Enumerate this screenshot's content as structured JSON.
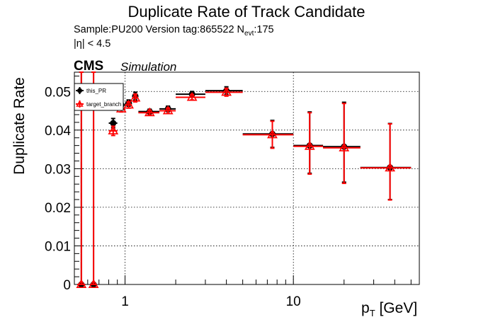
{
  "header": {
    "title": "Duplicate Rate of Track Candidate",
    "sample_text": "Sample:PU200   Version tag:865522  N",
    "nevt_sub": "evt",
    "nevt_value": ":175",
    "eta_text": "|η| < 4.5",
    "cms": "CMS",
    "simulation": "Simulation"
  },
  "colors": {
    "this_pr": "#000000",
    "target_branch": "#ff0000",
    "grid": "#000000",
    "legend_border": "#000000"
  },
  "chart_data": {
    "type": "scatter",
    "xlabel_main": "p",
    "xlabel_sub": "T",
    "xlabel_unit": " [GeV]",
    "ylabel": "Duplicate Rate",
    "xscale": "log",
    "xlim": [
      0.5,
      56
    ],
    "ylim": [
      0,
      0.055
    ],
    "x_ticks": [
      1,
      10
    ],
    "x_tick_labels": [
      "1",
      "10"
    ],
    "y_ticks": [
      0,
      0.01,
      0.02,
      0.03,
      0.04,
      0.05
    ],
    "y_tick_labels": [
      "0",
      "0.01",
      "0.02",
      "0.03",
      "0.04",
      "0.05"
    ],
    "grid": true,
    "legend_position": "top-left",
    "series": [
      {
        "name": "this_PR",
        "marker": "filled-circle",
        "color_key": "this_pr",
        "points": [
          {
            "x": 0.55,
            "xlo": 0.52,
            "xhi": 0.58,
            "y": 0.0,
            "ylo": 0.0,
            "yhi": 0.055
          },
          {
            "x": 0.65,
            "xlo": 0.62,
            "xhi": 0.68,
            "y": 0.0,
            "ylo": 0.0,
            "yhi": 0.055
          },
          {
            "x": 0.85,
            "xlo": 0.8,
            "xhi": 0.9,
            "y": 0.0418,
            "ylo": 0.0406,
            "yhi": 0.043
          },
          {
            "x": 0.95,
            "xlo": 0.9,
            "xhi": 1.0,
            "y": 0.0465,
            "ylo": 0.0457,
            "yhi": 0.0473
          },
          {
            "x": 1.05,
            "xlo": 1.0,
            "xhi": 1.1,
            "y": 0.047,
            "ylo": 0.0462,
            "yhi": 0.0478
          },
          {
            "x": 1.15,
            "xlo": 1.1,
            "xhi": 1.2,
            "y": 0.0488,
            "ylo": 0.0478,
            "yhi": 0.0498
          },
          {
            "x": 1.4,
            "xlo": 1.2,
            "xhi": 1.6,
            "y": 0.0448,
            "ylo": 0.0442,
            "yhi": 0.0454
          },
          {
            "x": 1.8,
            "xlo": 1.6,
            "xhi": 2.0,
            "y": 0.0455,
            "ylo": 0.0448,
            "yhi": 0.0462
          },
          {
            "x": 2.5,
            "xlo": 2.0,
            "xhi": 3.0,
            "y": 0.0493,
            "ylo": 0.0486,
            "yhi": 0.05
          },
          {
            "x": 4.0,
            "xlo": 3.0,
            "xhi": 5.0,
            "y": 0.0502,
            "ylo": 0.0492,
            "yhi": 0.0512
          },
          {
            "x": 7.5,
            "xlo": 5.0,
            "xhi": 10.0,
            "y": 0.039,
            "ylo": 0.0355,
            "yhi": 0.0425
          },
          {
            "x": 12.5,
            "xlo": 10.0,
            "xhi": 15.0,
            "y": 0.036,
            "ylo": 0.0288,
            "yhi": 0.0447
          },
          {
            "x": 20.0,
            "xlo": 15.0,
            "xhi": 25.0,
            "y": 0.0357,
            "ylo": 0.0265,
            "yhi": 0.0472
          },
          {
            "x": 37.5,
            "xlo": 25.0,
            "xhi": 50.0,
            "y": 0.0303,
            "ylo": 0.022,
            "yhi": 0.0417
          }
        ]
      },
      {
        "name": "target_branch",
        "marker": "open-triangle",
        "color_key": "target_branch",
        "points": [
          {
            "x": 0.55,
            "xlo": 0.52,
            "xhi": 0.58,
            "y": 0.0,
            "ylo": 0.0,
            "yhi": 0.055
          },
          {
            "x": 0.65,
            "xlo": 0.62,
            "xhi": 0.68,
            "y": 0.0,
            "ylo": 0.0,
            "yhi": 0.055
          },
          {
            "x": 0.85,
            "xlo": 0.8,
            "xhi": 0.9,
            "y": 0.0398,
            "ylo": 0.0386,
            "yhi": 0.041
          },
          {
            "x": 0.95,
            "xlo": 0.9,
            "xhi": 1.0,
            "y": 0.0455,
            "ylo": 0.0447,
            "yhi": 0.0463
          },
          {
            "x": 1.05,
            "xlo": 1.0,
            "xhi": 1.1,
            "y": 0.0465,
            "ylo": 0.0457,
            "yhi": 0.0473
          },
          {
            "x": 1.15,
            "xlo": 1.1,
            "xhi": 1.2,
            "y": 0.0483,
            "ylo": 0.0473,
            "yhi": 0.0493
          },
          {
            "x": 1.4,
            "xlo": 1.2,
            "xhi": 1.6,
            "y": 0.0445,
            "ylo": 0.0439,
            "yhi": 0.0451
          },
          {
            "x": 1.8,
            "xlo": 1.6,
            "xhi": 2.0,
            "y": 0.045,
            "ylo": 0.0443,
            "yhi": 0.0457
          },
          {
            "x": 2.5,
            "xlo": 2.0,
            "xhi": 3.0,
            "y": 0.0485,
            "ylo": 0.0478,
            "yhi": 0.0492
          },
          {
            "x": 4.0,
            "xlo": 3.0,
            "xhi": 5.0,
            "y": 0.0498,
            "ylo": 0.0488,
            "yhi": 0.0508
          },
          {
            "x": 7.5,
            "xlo": 5.0,
            "xhi": 10.0,
            "y": 0.0388,
            "ylo": 0.0353,
            "yhi": 0.0423
          },
          {
            "x": 12.5,
            "xlo": 10.0,
            "xhi": 15.0,
            "y": 0.0358,
            "ylo": 0.0286,
            "yhi": 0.0445
          },
          {
            "x": 20.0,
            "xlo": 15.0,
            "xhi": 25.0,
            "y": 0.0354,
            "ylo": 0.0262,
            "yhi": 0.0469
          },
          {
            "x": 37.5,
            "xlo": 25.0,
            "xhi": 50.0,
            "y": 0.0302,
            "ylo": 0.0219,
            "yhi": 0.0416
          }
        ]
      }
    ]
  }
}
